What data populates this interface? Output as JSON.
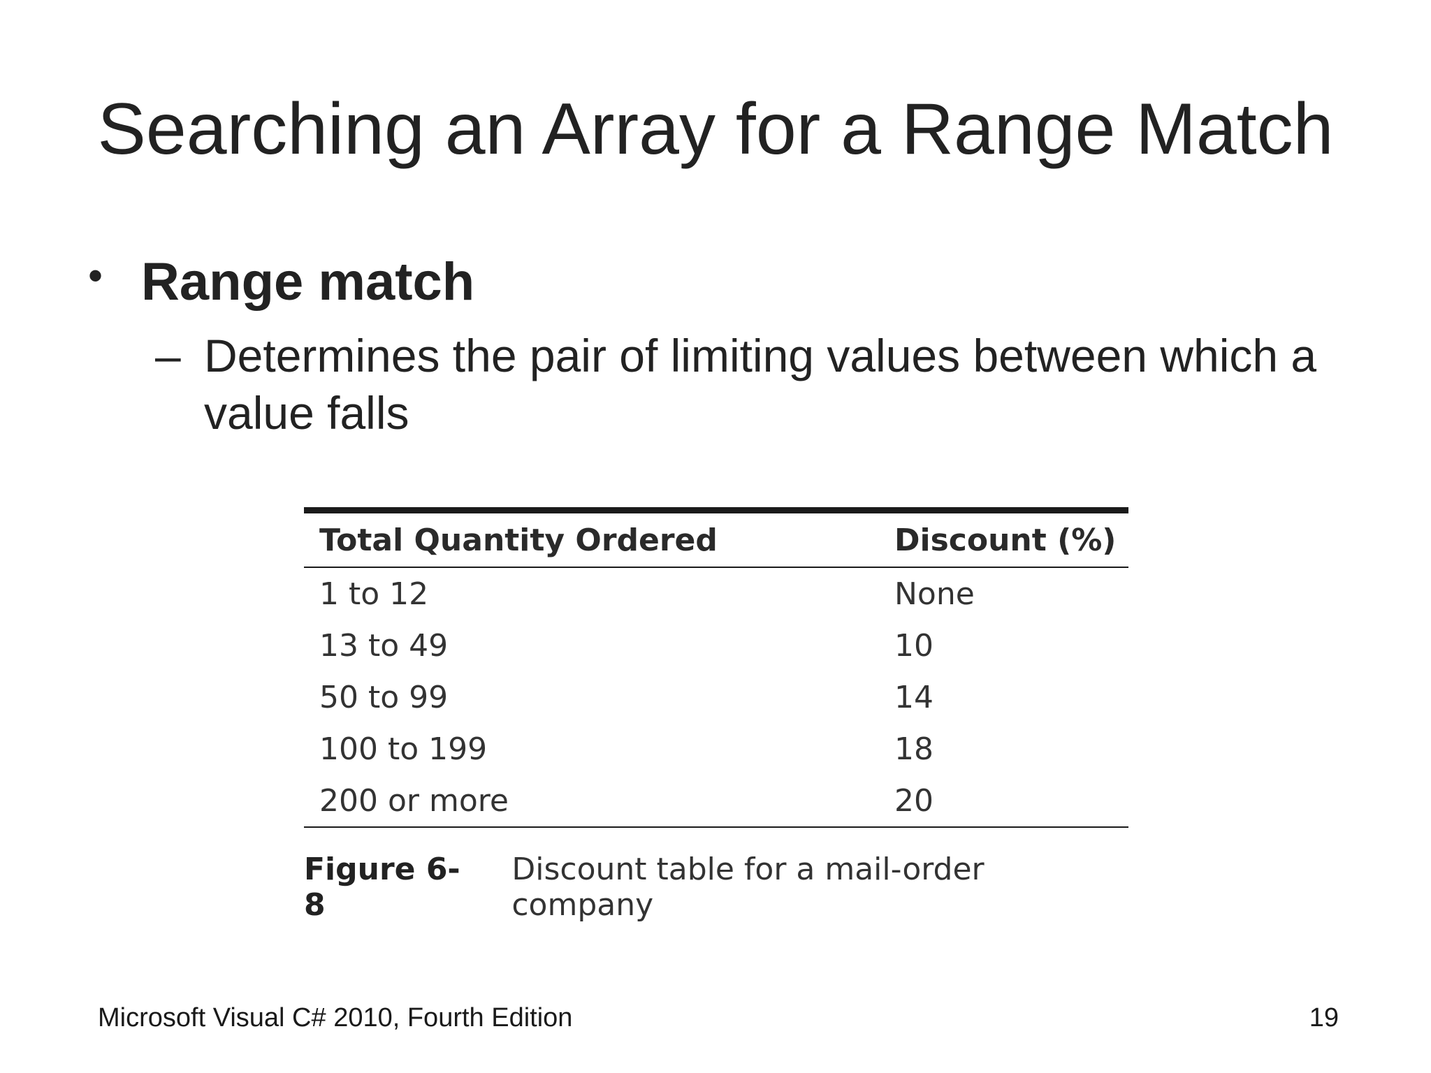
{
  "slide": {
    "title": "Searching an Array for a Range Match",
    "bullet": {
      "symbol": "•",
      "text": "Range match"
    },
    "sub_bullet": {
      "symbol": "–",
      "text": "Determines the pair of limiting values between which a value falls"
    }
  },
  "figure": {
    "table": {
      "headers": [
        "Total Quantity Ordered",
        "Discount (%)"
      ],
      "rows": [
        [
          "1 to 12",
          "None"
        ],
        [
          "13 to 49",
          "10"
        ],
        [
          "50 to 99",
          "14"
        ],
        [
          "100 to 199",
          "18"
        ],
        [
          "200 or more",
          "20"
        ]
      ]
    },
    "caption_label": "Figure 6-8",
    "caption_text": "Discount table for a mail-order company"
  },
  "footer": {
    "left": "Microsoft Visual C# 2010, Fourth Edition",
    "page_number": "19"
  }
}
